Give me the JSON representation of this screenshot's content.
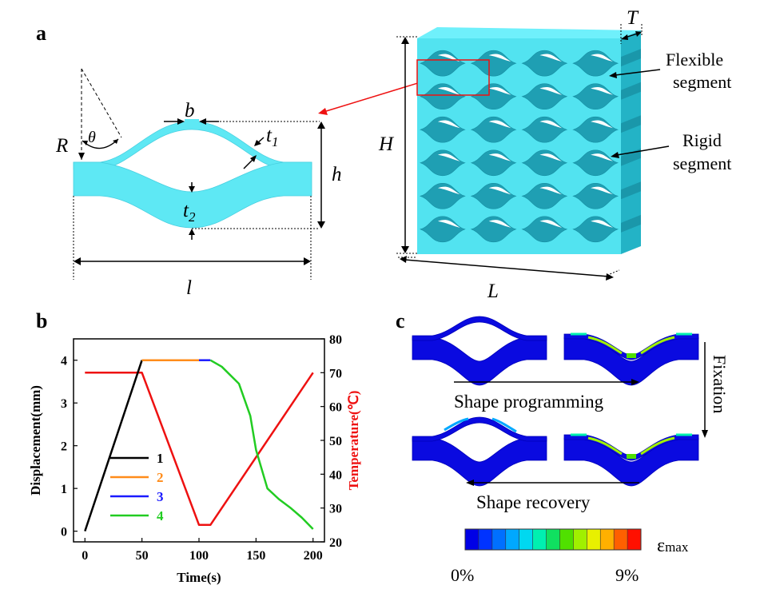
{
  "panels": {
    "a": {
      "label": "a",
      "labels": {
        "b": "b",
        "theta": "θ",
        "R": "R",
        "t1": "t",
        "t1_sub": "1",
        "h": "h",
        "t2": "t",
        "t2_sub": "2",
        "l": "l",
        "H": "H",
        "T": "T",
        "L": "L",
        "flexible_1": "Flexible",
        "flexible_2": "segment",
        "rigid_1": "Rigid",
        "rigid_2": "segment"
      }
    },
    "b": {
      "label": "b",
      "legend": [
        {
          "label": "1",
          "color": "#000000"
        },
        {
          "label": "2",
          "color": "#ff8c1a"
        },
        {
          "label": "3",
          "color": "#1a1aff"
        },
        {
          "label": "4",
          "color": "#22cc22"
        }
      ]
    },
    "c": {
      "label": "c",
      "texts": {
        "programming": "Shape programming",
        "recovery": "Shape recovery",
        "fixation": "Fixation",
        "epsilon": "ε",
        "epsilon_sub": "max",
        "min": "0%",
        "max": "9%"
      },
      "colorbar": [
        "#0000e6",
        "#0033ff",
        "#0070ff",
        "#00a8ff",
        "#00d8f0",
        "#00f0b0",
        "#10e060",
        "#50e000",
        "#a0f000",
        "#e8f000",
        "#ffb000",
        "#ff6000",
        "#ff1000"
      ]
    }
  },
  "chart_data": {
    "type": "line",
    "xlabel": "Time(s)",
    "ylabel": "Displacement(mm)",
    "y2label": "Temperature(℃)",
    "xlim": [
      -10,
      210
    ],
    "ylim": [
      -0.25,
      4.5
    ],
    "y2lim": [
      20,
      80
    ],
    "xticks": [
      "0",
      "50",
      "100",
      "150",
      "200"
    ],
    "yticks": [
      "0",
      "1",
      "2",
      "3",
      "4"
    ],
    "y2ticks": [
      "20",
      "30",
      "40",
      "50",
      "60",
      "70",
      "80"
    ],
    "series": [
      {
        "name": "1",
        "axis": "left",
        "color": "#000000",
        "x": [
          0,
          50
        ],
        "y": [
          0,
          4
        ]
      },
      {
        "name": "2",
        "axis": "left",
        "color": "#ff8c1a",
        "x": [
          50,
          100
        ],
        "y": [
          4,
          4
        ]
      },
      {
        "name": "3",
        "axis": "left",
        "color": "#1a1aff",
        "x": [
          100,
          110
        ],
        "y": [
          4,
          4
        ]
      },
      {
        "name": "4",
        "axis": "left",
        "color": "#22cc22",
        "x": [
          110,
          120,
          135,
          145,
          150,
          160,
          170,
          180,
          190,
          200
        ],
        "y": [
          4,
          3.85,
          3.45,
          2.7,
          1.9,
          1.0,
          0.75,
          0.55,
          0.32,
          0.05
        ]
      },
      {
        "name": "",
        "axis": "right",
        "color": "#ee1111",
        "x": [
          0,
          50,
          100,
          110,
          200
        ],
        "y": [
          70,
          70,
          25,
          25,
          70
        ]
      }
    ]
  }
}
